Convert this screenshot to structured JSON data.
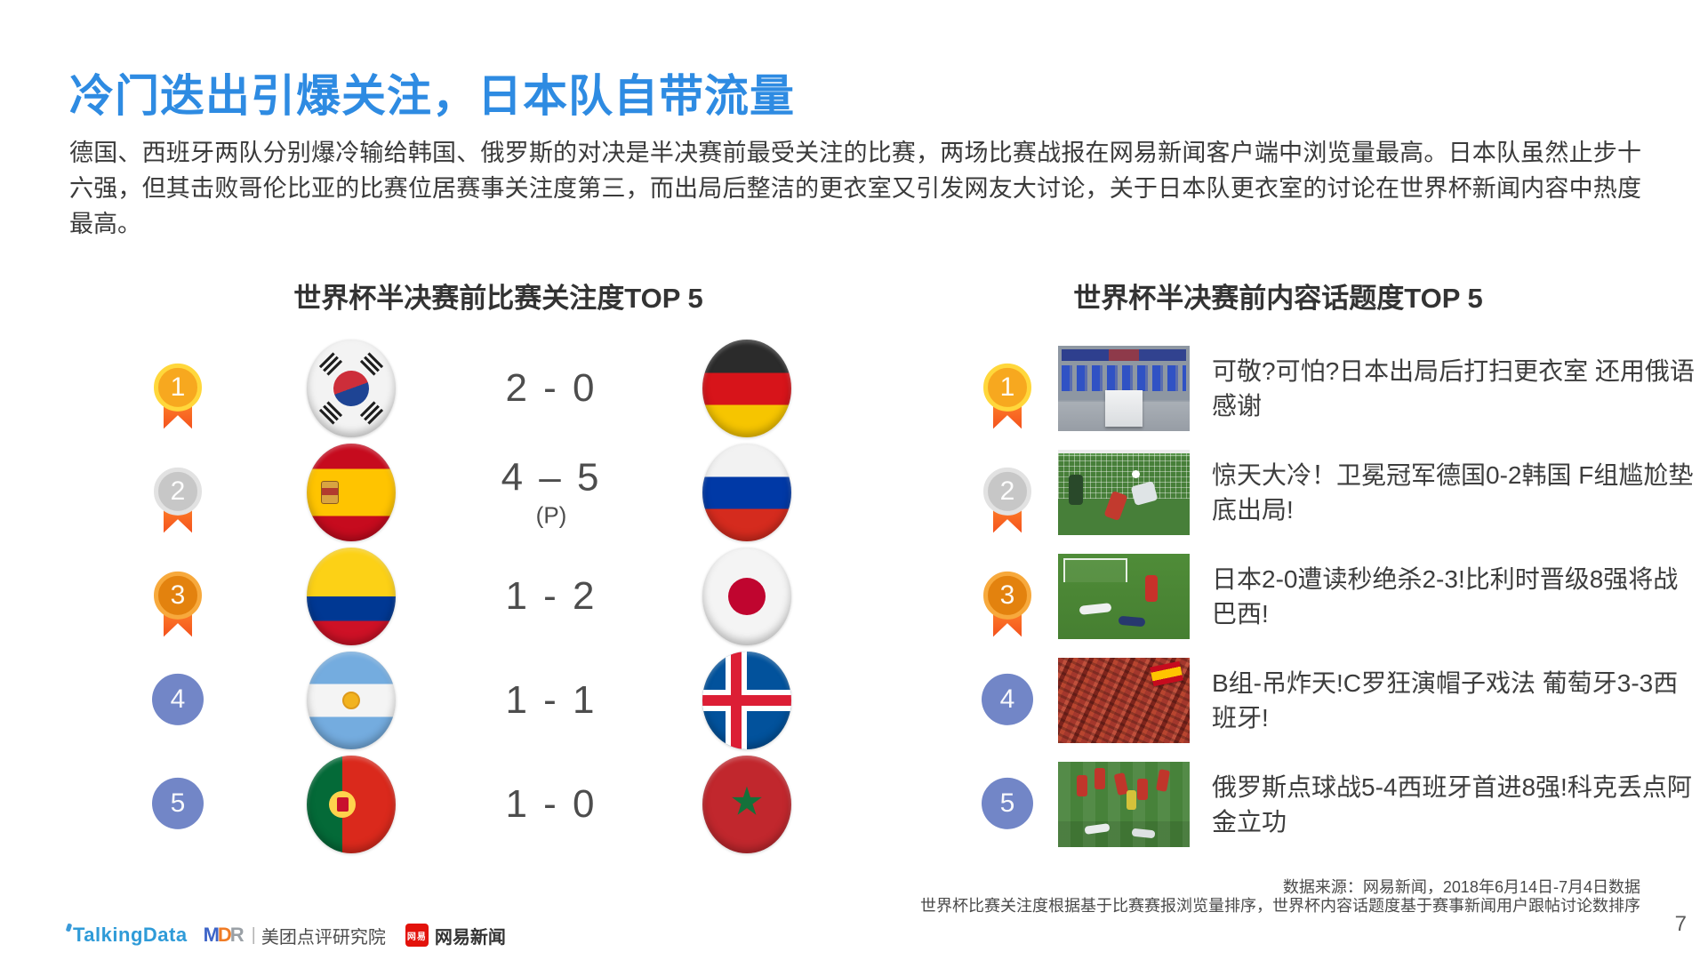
{
  "title": "冷门迭出引爆关注，日本队自带流量",
  "paragraph": "德国、西班牙两队分别爆冷输给韩国、俄罗斯的对决是半决赛前最受关注的比赛，两场比赛战报在网易新闻客户端中浏览量最高。日本队虽然止步十六强，但其击败哥伦比亚的比赛位居赛事关注度第三，而出局后整洁的更衣室又引发网友大讨论，关于日本队更衣室的讨论在世界杯新闻内容中热度最高。",
  "left_section": {
    "header": "世界杯半决赛前比赛关注度TOP 5",
    "rows": [
      {
        "rank": "1",
        "medal": "gold",
        "team_a": "south-korea",
        "score": "2 - 0",
        "score_note": "",
        "team_b": "germany"
      },
      {
        "rank": "2",
        "medal": "silver",
        "team_a": "spain",
        "score": "4 – 5",
        "score_note": "(P)",
        "team_b": "russia"
      },
      {
        "rank": "3",
        "medal": "bronze",
        "team_a": "colombia",
        "score": "1 - 2",
        "score_note": "",
        "team_b": "japan"
      },
      {
        "rank": "4",
        "medal": "plain",
        "team_a": "argentina",
        "score": "1 - 1",
        "score_note": "",
        "team_b": "iceland"
      },
      {
        "rank": "5",
        "medal": "plain",
        "team_a": "portugal",
        "score": "1 - 0",
        "score_note": "",
        "team_b": "morocco"
      }
    ]
  },
  "right_section": {
    "header": "世界杯半决赛前内容话题度TOP 5",
    "rows": [
      {
        "rank": "1",
        "medal": "gold",
        "thumb": "locker-room-photo",
        "text": "可敬?可怕?日本出局后打扫更衣室 还用俄语感谢"
      },
      {
        "rank": "2",
        "medal": "silver",
        "thumb": "goal-net-photo",
        "text": "惊天大冷！卫冕冠军德国0-2韩国 F组尴尬垫底出局!"
      },
      {
        "rank": "3",
        "medal": "bronze",
        "thumb": "pitch-players-photo",
        "text": "日本2-0遭读秒绝杀2-3!比利时晋级8强将战巴西!"
      },
      {
        "rank": "4",
        "medal": "plain",
        "thumb": "red-crowd-photo",
        "text": "B组-吊炸天!C罗狂演帽子戏法 葡萄牙3-3西班牙!"
      },
      {
        "rank": "5",
        "medal": "plain",
        "thumb": "team-celebration-photo",
        "text": "俄罗斯点球战5-4西班牙首进8强!科克丢点阿金立功"
      }
    ]
  },
  "icons": {
    "star": "★"
  },
  "footer": {
    "source_line1": "数据来源：网易新闻，2018年6月14日-7月4日数据",
    "source_line2": "世界杯比赛关注度根据基于比赛赛报浏览量排序，世界杯内容话题度基于赛事新闻用户跟帖讨论数排序",
    "page_number": "7",
    "logos": {
      "talkingdata": "TalkingData",
      "mdr_m": "M",
      "mdr_d": "D",
      "mdr_r": "R",
      "divider": "|",
      "mdr_name": "美团点评研究院",
      "netease_badge": "网易",
      "netease_name": "网易新闻"
    }
  },
  "colors": {
    "title_blue": "#2E8BE2",
    "medal_gold": "#F7A81F",
    "medal_silver": "#C7C7C7",
    "medal_bronze": "#E3820E",
    "rank_plain_blue": "#7286C7",
    "ribbon_orange": "#F4511E"
  }
}
